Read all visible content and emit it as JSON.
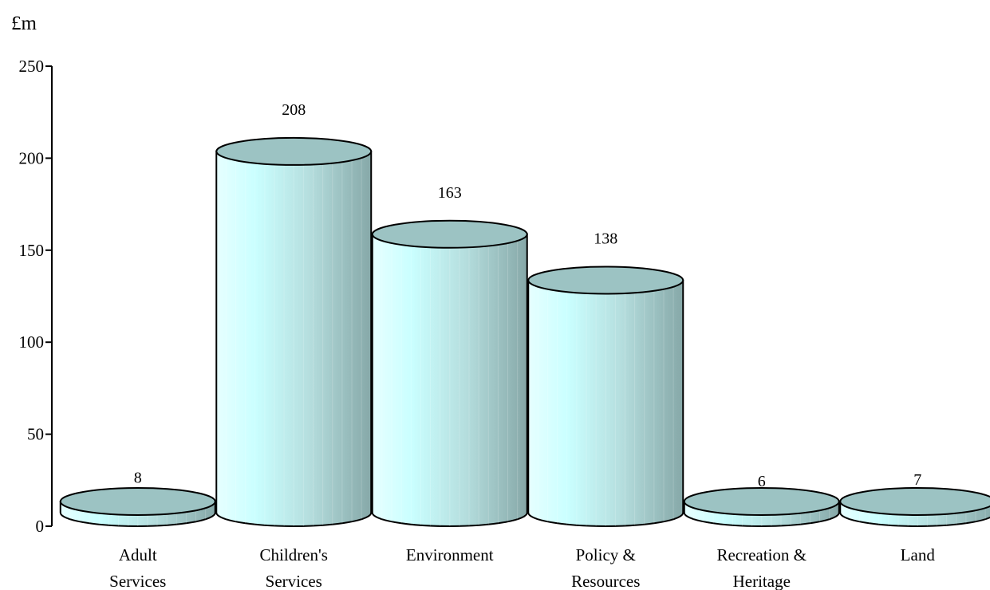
{
  "chart_data": {
    "type": "bar",
    "style": "3d-cylinder",
    "ylabel": "£m",
    "ylim": [
      0,
      250
    ],
    "yticks": [
      0,
      50,
      100,
      150,
      200,
      250
    ],
    "categories": [
      [
        "Adult",
        "Services"
      ],
      [
        "Children's",
        "Services"
      ],
      [
        "Environment"
      ],
      [
        "Policy &",
        "Resources"
      ],
      [
        "Recreation &",
        "Heritage"
      ],
      [
        "Land"
      ]
    ],
    "values": [
      8,
      208,
      163,
      138,
      6,
      7
    ],
    "value_labels": [
      "8",
      "208",
      "163",
      "138",
      "6",
      "7"
    ],
    "grid": false,
    "legend": "none",
    "colors": {
      "body_light": "#d6ffff",
      "body_dark": "#8fb1b1",
      "top": "#9cc3c3",
      "outline": "#000000"
    }
  }
}
